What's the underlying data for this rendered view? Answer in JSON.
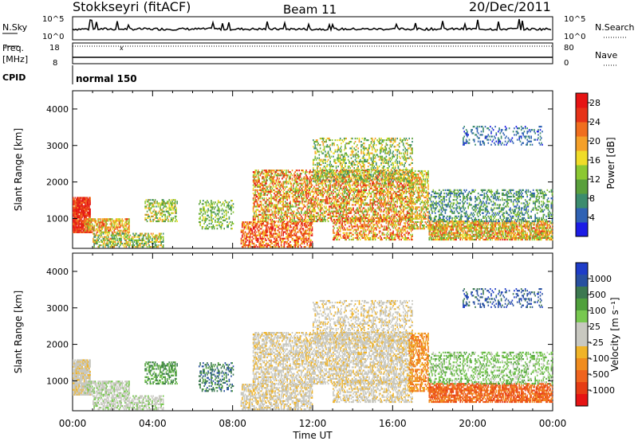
{
  "header": {
    "station": "Stokkseyri (fitACF)",
    "beam": "Beam 11",
    "date": "20/Dec/2011"
  },
  "noise_panel": {
    "left_label": "N.Sky",
    "left_ticks": [
      "10^5",
      "10^0"
    ],
    "right_ticks": [
      "10^5",
      "10^0"
    ],
    "right_label": "N.Search"
  },
  "freq_panel": {
    "left_label_1": "Freq.",
    "left_label_2": "[MHz]",
    "left_ticks": [
      "18",
      "8"
    ],
    "right_ticks": [
      "80",
      "0"
    ],
    "right_label": "Nave"
  },
  "cpid_panel": {
    "label": "CPID",
    "value": "normal 150"
  },
  "colors": {
    "power_scale": [
      "#1c1ce6",
      "#2f62b4",
      "#3c8c6e",
      "#5aa03c",
      "#8cc832",
      "#f0dc28",
      "#f5a028",
      "#f06e1e",
      "#e63218",
      "#e61414"
    ],
    "velocity_scale": [
      "#1e3cc8",
      "#2850a0",
      "#3c7850",
      "#50a03c",
      "#78c850",
      "#c8c8c0",
      "#c8c8c0",
      "#f0b428",
      "#f08c1e",
      "#f0641e",
      "#e63c14",
      "#e61414"
    ]
  },
  "chart_data": [
    {
      "type": "heatmap",
      "name": "power",
      "ylabel": "Slant Range [km]",
      "yticks": [
        "1000",
        "2000",
        "3000",
        "4000"
      ],
      "ylim": [
        180,
        4500
      ],
      "colorbar_label": "Power [dB]",
      "colorbar_ticks": [
        "4",
        "8",
        "12",
        "16",
        "20",
        "24",
        "28"
      ],
      "colorbar_range": [
        0,
        30
      ]
    },
    {
      "type": "heatmap",
      "name": "velocity",
      "ylabel": "Slant Range [km]",
      "yticks": [
        "1000",
        "2000",
        "3000",
        "4000"
      ],
      "ylim": [
        180,
        4500
      ],
      "colorbar_label": "Velocity [m s⁻¹]",
      "colorbar_ticks": [
        "1000",
        "500",
        "100",
        "25",
        "-25",
        "-100",
        "-500",
        "-1000"
      ]
    }
  ],
  "x_axis": {
    "ticks": [
      "00:00",
      "04:00",
      "08:00",
      "12:00",
      "16:00",
      "20:00",
      "00:00"
    ],
    "label": "Time UT",
    "range_hours": [
      0,
      24
    ]
  }
}
